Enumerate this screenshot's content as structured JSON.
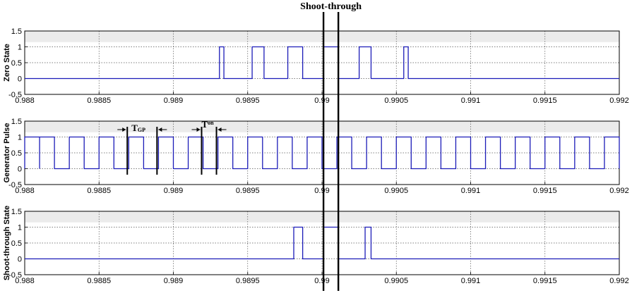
{
  "figure": {
    "annotation_title": "Shoot-through",
    "tgp_label": {
      "main": "T",
      "sub": "GP"
    },
    "ton_label": {
      "main": "T",
      "sub": "on"
    },
    "colors": {
      "signal": "#1c1cb8",
      "panel_bg": "#ebebeb",
      "grid": "#555555",
      "marker": "#000000"
    }
  },
  "chart_data": [
    {
      "type": "line",
      "name": "zero-state",
      "ylabel": "Zero State",
      "xlim": [
        0.988,
        0.992
      ],
      "ylim": [
        -0.5,
        1.5
      ],
      "xticks": [
        0.988,
        0.9885,
        0.989,
        0.9895,
        0.99,
        0.9905,
        0.991,
        0.9915,
        0.992
      ],
      "xtick_labels": [
        "0.988",
        "0.9885",
        "0.989",
        "0.9895",
        "0.99",
        "0.9905",
        "0.991",
        "0.9915",
        "0.992"
      ],
      "yticks": [
        -0.5,
        0,
        0.5,
        1,
        1.5
      ],
      "ytick_labels": [
        "-0.5",
        "0",
        "0.5",
        "1",
        "1.5"
      ],
      "grid": true,
      "pulses": [
        [
          0.98931,
          0.98934
        ],
        [
          0.98953,
          0.98961
        ],
        [
          0.98977,
          0.98987
        ],
        [
          0.99001,
          0.99011
        ],
        [
          0.99025,
          0.99033
        ],
        [
          0.99055,
          0.99058
        ]
      ]
    },
    {
      "type": "line",
      "name": "generator-pulse",
      "ylabel": "Generator Pulse",
      "xlim": [
        0.988,
        0.992
      ],
      "ylim": [
        -0.5,
        1.5
      ],
      "xticks": [
        0.988,
        0.9885,
        0.989,
        0.9895,
        0.99,
        0.9905,
        0.991,
        0.9915,
        0.992
      ],
      "xtick_labels": [
        "0.988",
        "0.9885",
        "0.989",
        "0.9895",
        "0.99",
        "0.9905",
        "0.991",
        "0.9915",
        "0.992"
      ],
      "yticks": [
        -0.5,
        0,
        0.5,
        1,
        1.5
      ],
      "ytick_labels": [
        "-0.5",
        "0",
        "0.5",
        "1",
        "1.5"
      ],
      "grid": true,
      "period": 0.0002,
      "pulse_on_offset": 0.0001,
      "pulse_width": 0.0001
    },
    {
      "type": "line",
      "name": "shoot-through-state",
      "ylabel": "Shoot-through State",
      "xlim": [
        0.988,
        0.992
      ],
      "ylim": [
        -0.5,
        1.5
      ],
      "xticks": [
        0.988,
        0.9885,
        0.989,
        0.9895,
        0.99,
        0.9905,
        0.991,
        0.9915,
        0.992
      ],
      "xtick_labels": [
        "0.988",
        "0.9885",
        "0.989",
        "0.9895",
        "0.99",
        "0.9905",
        "0.991",
        "0.9915",
        "0.992"
      ],
      "yticks": [
        -0.5,
        0,
        0.5,
        1,
        1.5
      ],
      "ytick_labels": [
        "-0.5",
        "0",
        "0.5",
        "1",
        "1.5"
      ],
      "grid": true,
      "pulses": [
        [
          0.98981,
          0.98987
        ],
        [
          0.99001,
          0.99011
        ],
        [
          0.99029,
          0.99033
        ]
      ]
    }
  ],
  "markers": {
    "shoot_through_lines": [
      0.99001,
      0.99011
    ],
    "tgp_lines": [
      0.98869,
      0.98889
    ],
    "ton_lines": [
      0.98919,
      0.98929
    ]
  }
}
